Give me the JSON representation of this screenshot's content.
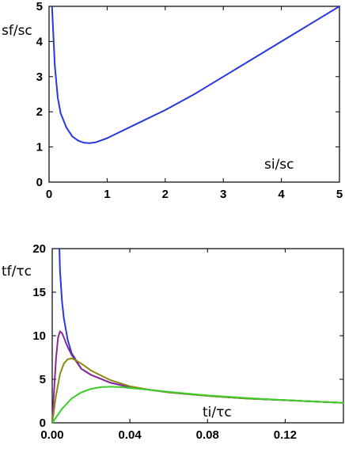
{
  "chart_data": [
    {
      "type": "line",
      "title": "",
      "xlabel": "si/sc",
      "ylabel": "sf/sc",
      "xlim": [
        0,
        5
      ],
      "ylim": [
        0,
        5
      ],
      "xticks": [
        "0",
        "1",
        "2",
        "3",
        "4",
        "5"
      ],
      "yticks": [
        "0",
        "1",
        "2",
        "3",
        "4",
        "5"
      ],
      "grid": false,
      "series": [
        {
          "color": "#2a36e0",
          "x": [
            0.05,
            0.1,
            0.15,
            0.2,
            0.3,
            0.4,
            0.5,
            0.6,
            0.7,
            0.8,
            1.0,
            1.5,
            2.0,
            2.5,
            3.0,
            3.5,
            4.0,
            4.5,
            5.0
          ],
          "y": [
            5.0,
            3.3,
            2.4,
            1.95,
            1.55,
            1.3,
            1.18,
            1.12,
            1.11,
            1.13,
            1.25,
            1.65,
            2.05,
            2.5,
            3.0,
            3.5,
            4.0,
            4.5,
            5.0
          ]
        }
      ]
    },
    {
      "type": "line",
      "title": "",
      "xlabel": "ti/τc",
      "ylabel": "tf/τc",
      "xlim": [
        0,
        0.15
      ],
      "ylim": [
        0,
        20
      ],
      "xticks": [
        "0.00",
        "0.04",
        "0.08",
        "0.12"
      ],
      "yticks": [
        "0",
        "5",
        "10",
        "15",
        "20"
      ],
      "grid": false,
      "series": [
        {
          "color": "#2a36e0",
          "x": [
            0.0037,
            0.004,
            0.005,
            0.006,
            0.008,
            0.01,
            0.015,
            0.02,
            0.03,
            0.04,
            0.05,
            0.06,
            0.08,
            0.1,
            0.12,
            0.15
          ],
          "y": [
            20.0,
            17.5,
            14.0,
            12.0,
            9.5,
            8.0,
            6.2,
            5.5,
            4.6,
            4.1,
            3.8,
            3.5,
            3.1,
            2.8,
            2.6,
            2.3
          ]
        },
        {
          "color": "#8a2a96",
          "x": [
            0.0,
            0.001,
            0.002,
            0.003,
            0.004,
            0.005,
            0.006,
            0.007,
            0.008,
            0.01,
            0.015,
            0.02,
            0.03,
            0.04,
            0.05,
            0.06,
            0.08,
            0.1,
            0.12,
            0.15
          ],
          "y": [
            0.0,
            4.0,
            7.5,
            9.8,
            10.5,
            10.3,
            9.8,
            9.2,
            8.7,
            7.8,
            6.2,
            5.5,
            4.6,
            4.1,
            3.8,
            3.5,
            3.1,
            2.8,
            2.6,
            2.3
          ]
        },
        {
          "color": "#8a8a16",
          "x": [
            0.0,
            0.002,
            0.004,
            0.006,
            0.008,
            0.01,
            0.012,
            0.015,
            0.02,
            0.03,
            0.04,
            0.05,
            0.06,
            0.08,
            0.1,
            0.12,
            0.15
          ],
          "y": [
            0.0,
            3.2,
            5.6,
            6.8,
            7.3,
            7.4,
            7.2,
            6.8,
            6.0,
            4.9,
            4.2,
            3.8,
            3.5,
            3.1,
            2.8,
            2.6,
            2.3
          ]
        },
        {
          "color": "#3ccd28",
          "x": [
            0.0,
            0.005,
            0.01,
            0.015,
            0.02,
            0.025,
            0.03,
            0.035,
            0.04,
            0.05,
            0.06,
            0.08,
            0.1,
            0.12,
            0.15
          ],
          "y": [
            0.0,
            1.6,
            2.8,
            3.5,
            3.9,
            4.1,
            4.15,
            4.1,
            4.0,
            3.8,
            3.55,
            3.15,
            2.85,
            2.6,
            2.3
          ]
        }
      ]
    }
  ]
}
